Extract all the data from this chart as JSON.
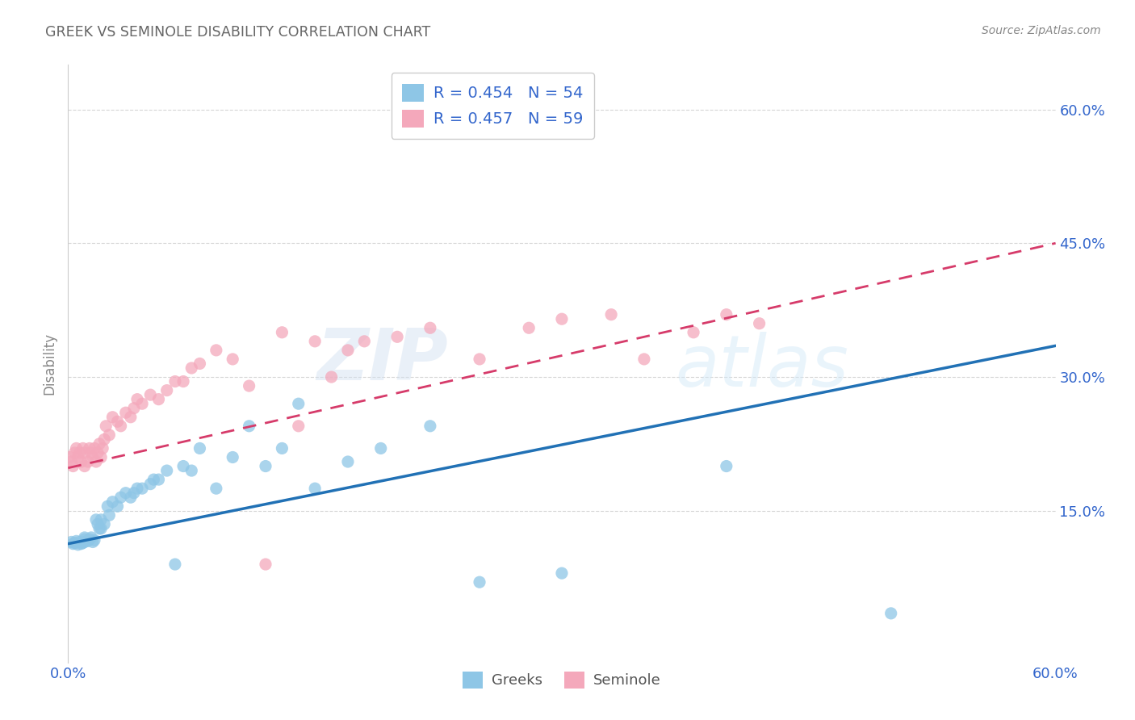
{
  "title": "GREEK VS SEMINOLE DISABILITY CORRELATION CHART",
  "source": "Source: ZipAtlas.com",
  "ylabel": "Disability",
  "watermark_zip": "ZIP",
  "watermark_atlas": "atlas",
  "xlim": [
    0.0,
    0.6
  ],
  "ylim": [
    -0.02,
    0.65
  ],
  "yticks": [
    0.15,
    0.3,
    0.45,
    0.6
  ],
  "ytick_labels": [
    "15.0%",
    "30.0%",
    "45.0%",
    "60.0%"
  ],
  "blue_R": 0.454,
  "blue_N": 54,
  "pink_R": 0.457,
  "pink_N": 59,
  "blue_color": "#8ec6e6",
  "pink_color": "#f4a8bb",
  "blue_line_color": "#2171b5",
  "pink_line_color": "#d63b6a",
  "background_color": "#ffffff",
  "grid_color": "#cccccc",
  "title_color": "#666666",
  "legend_text_color": "#3366cc",
  "axis_tick_color": "#3366cc",
  "blue_line_start_y": 0.113,
  "blue_line_end_y": 0.335,
  "pink_line_start_y": 0.198,
  "pink_line_end_y": 0.45,
  "blue_scatter_x": [
    0.002,
    0.003,
    0.004,
    0.005,
    0.006,
    0.007,
    0.008,
    0.009,
    0.01,
    0.01,
    0.01,
    0.012,
    0.013,
    0.014,
    0.015,
    0.016,
    0.017,
    0.018,
    0.019,
    0.02,
    0.02,
    0.022,
    0.024,
    0.025,
    0.027,
    0.03,
    0.032,
    0.035,
    0.038,
    0.04,
    0.042,
    0.045,
    0.05,
    0.052,
    0.055,
    0.06,
    0.065,
    0.07,
    0.075,
    0.08,
    0.09,
    0.1,
    0.11,
    0.12,
    0.13,
    0.14,
    0.15,
    0.17,
    0.19,
    0.22,
    0.25,
    0.3,
    0.4,
    0.5
  ],
  "blue_scatter_y": [
    0.115,
    0.113,
    0.114,
    0.116,
    0.112,
    0.115,
    0.113,
    0.114,
    0.115,
    0.118,
    0.12,
    0.116,
    0.118,
    0.12,
    0.115,
    0.117,
    0.14,
    0.135,
    0.13,
    0.13,
    0.14,
    0.135,
    0.155,
    0.145,
    0.16,
    0.155,
    0.165,
    0.17,
    0.165,
    0.17,
    0.175,
    0.175,
    0.18,
    0.185,
    0.185,
    0.195,
    0.09,
    0.2,
    0.195,
    0.22,
    0.175,
    0.21,
    0.245,
    0.2,
    0.22,
    0.27,
    0.175,
    0.205,
    0.22,
    0.245,
    0.07,
    0.08,
    0.2,
    0.035
  ],
  "pink_scatter_x": [
    0.001,
    0.002,
    0.003,
    0.004,
    0.005,
    0.006,
    0.007,
    0.008,
    0.009,
    0.01,
    0.01,
    0.012,
    0.013,
    0.014,
    0.015,
    0.016,
    0.017,
    0.018,
    0.019,
    0.02,
    0.021,
    0.022,
    0.023,
    0.025,
    0.027,
    0.03,
    0.032,
    0.035,
    0.038,
    0.04,
    0.042,
    0.045,
    0.05,
    0.055,
    0.06,
    0.065,
    0.07,
    0.075,
    0.08,
    0.09,
    0.1,
    0.11,
    0.12,
    0.13,
    0.14,
    0.15,
    0.16,
    0.17,
    0.18,
    0.2,
    0.22,
    0.25,
    0.28,
    0.3,
    0.33,
    0.35,
    0.38,
    0.4,
    0.42
  ],
  "pink_scatter_y": [
    0.21,
    0.205,
    0.2,
    0.215,
    0.22,
    0.21,
    0.215,
    0.205,
    0.22,
    0.2,
    0.215,
    0.205,
    0.22,
    0.215,
    0.21,
    0.22,
    0.205,
    0.215,
    0.225,
    0.21,
    0.22,
    0.23,
    0.245,
    0.235,
    0.255,
    0.25,
    0.245,
    0.26,
    0.255,
    0.265,
    0.275,
    0.27,
    0.28,
    0.275,
    0.285,
    0.295,
    0.295,
    0.31,
    0.315,
    0.33,
    0.32,
    0.29,
    0.09,
    0.35,
    0.245,
    0.34,
    0.3,
    0.33,
    0.34,
    0.345,
    0.355,
    0.32,
    0.355,
    0.365,
    0.37,
    0.32,
    0.35,
    0.37,
    0.36
  ]
}
